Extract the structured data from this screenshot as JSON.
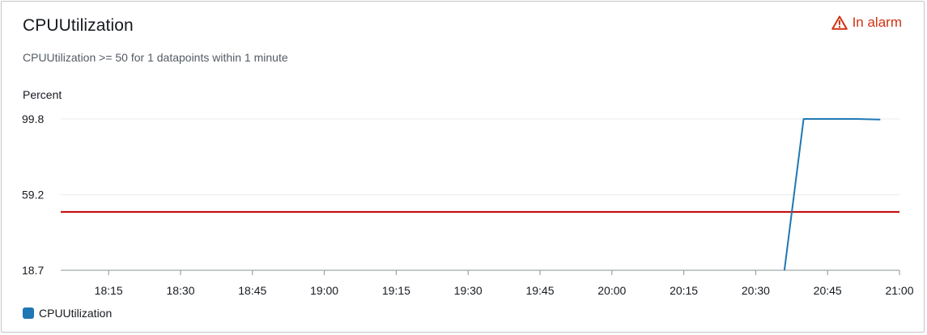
{
  "widget": {
    "title": "CPUUtilization",
    "status_label": "In alarm",
    "status_icon": "warning-triangle-icon",
    "status_color": "#d13212",
    "condition": "CPUUtilization >= 50 for 1 datapoints within 1 minute",
    "unit_label": "Percent"
  },
  "legend": {
    "items": [
      {
        "label": "CPUUtilization",
        "color": "#1f77b4"
      }
    ]
  },
  "chart_data": {
    "type": "line",
    "ylabel": "Percent",
    "y_ticks": [
      18.7,
      59.2,
      99.8
    ],
    "y_tick_labels": [
      "18.7",
      "59.2",
      "99.8"
    ],
    "ylim": [
      18.7,
      99.8
    ],
    "x_ticks": [
      "18:15",
      "18:30",
      "18:45",
      "19:00",
      "19:15",
      "19:30",
      "19:45",
      "20:00",
      "20:15",
      "20:30",
      "20:45",
      "21:00"
    ],
    "xlim": [
      "18:05",
      "21:00"
    ],
    "grid": true,
    "legend_position": "bottom-left",
    "threshold": {
      "value": 50,
      "color": "#c00000"
    },
    "series": [
      {
        "name": "CPUUtilization",
        "color": "#1f77b4",
        "x": [
          "20:36",
          "20:40",
          "20:46",
          "20:51",
          "20:56"
        ],
        "y": [
          18.7,
          99.8,
          99.8,
          99.8,
          99.5
        ]
      }
    ]
  }
}
